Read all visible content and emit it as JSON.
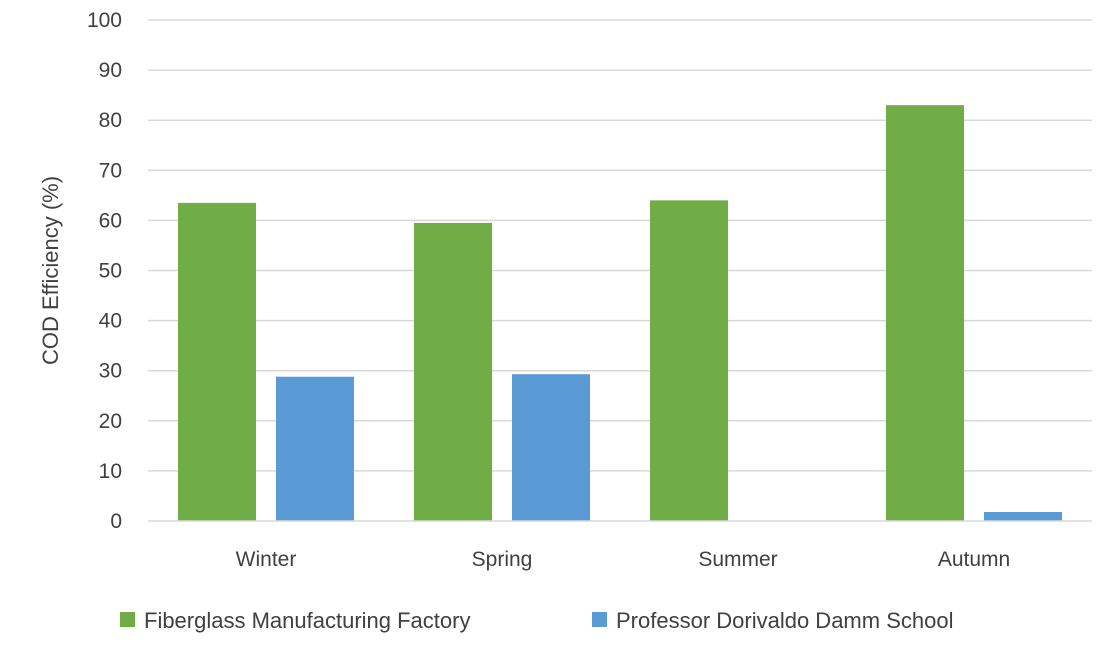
{
  "chart_data": {
    "type": "bar",
    "title": "",
    "xlabel": "",
    "ylabel": "COD Efficiency (%)",
    "ylim": [
      0,
      100
    ],
    "ytick_step": 10,
    "grid": true,
    "legend_position": "bottom",
    "categories": [
      "Winter",
      "Spring",
      "Summer",
      "Autumn"
    ],
    "series": [
      {
        "name": "Fiberglass Manufacturing Factory",
        "color": "#70ad47",
        "values": [
          63.5,
          59.5,
          64,
          83
        ]
      },
      {
        "name": "Professor Dorivaldo Damm School",
        "color": "#5b9bd5",
        "values": [
          28.8,
          29.3,
          0,
          1.8
        ]
      }
    ]
  }
}
